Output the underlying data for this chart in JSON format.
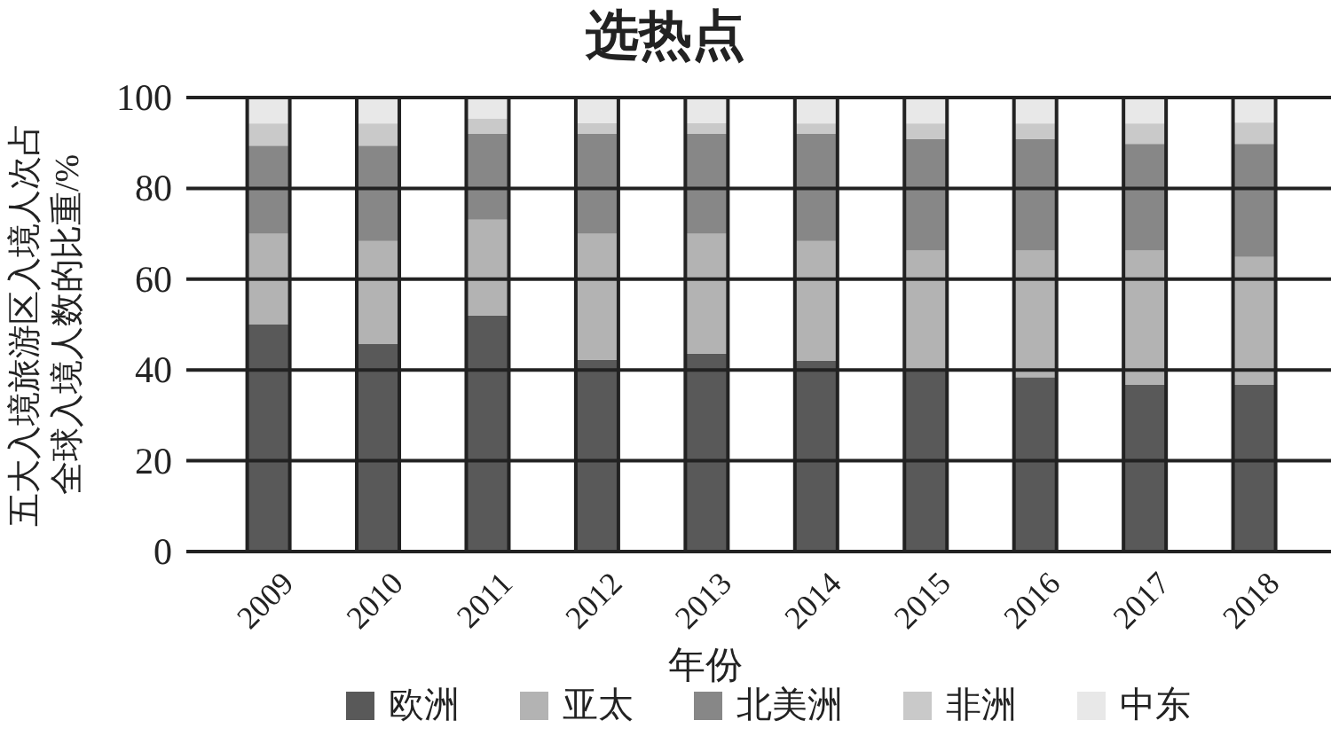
{
  "chart_data": {
    "type": "bar",
    "title": "选热点",
    "xlabel": "年份",
    "ylabel": "五大入境旅游区入境人次占全球入境人数的比重/%",
    "stacked": true,
    "categories": [
      "2009",
      "2010",
      "2011",
      "2012",
      "2013",
      "2014",
      "2015",
      "2016",
      "2017",
      "2018"
    ],
    "series": [
      {
        "name": "欧洲",
        "color": "#595959",
        "values": [
          50,
          45.7,
          52,
          42.2,
          43.6,
          42,
          40,
          38.4,
          36.8,
          36.8
        ]
      },
      {
        "name": "亚太",
        "color": "#b3b3b3",
        "values": [
          20,
          22.7,
          21.1,
          27.8,
          26.4,
          26.4,
          26.3,
          27.9,
          29.5,
          28.1
        ]
      },
      {
        "name": "北美洲",
        "color": "#878787",
        "values": [
          19.4,
          21,
          18.9,
          22,
          22,
          23.6,
          24.6,
          24.6,
          23.5,
          24.9
        ]
      },
      {
        "name": "非洲",
        "color": "#c9c9c9",
        "values": [
          4.9,
          4.9,
          3.4,
          2.4,
          2.4,
          2.3,
          3.4,
          3.4,
          4.5,
          4.7
        ]
      },
      {
        "name": "中东",
        "color": "#e8e8e8",
        "values": [
          5.7,
          5.7,
          4.6,
          5.6,
          5.6,
          5.7,
          5.7,
          5.7,
          5.7,
          5.5
        ]
      }
    ],
    "ylim": [
      0,
      100
    ],
    "yticks": [
      0,
      20,
      40,
      60,
      80,
      100
    ],
    "grid": "y",
    "legend": "bottom"
  }
}
